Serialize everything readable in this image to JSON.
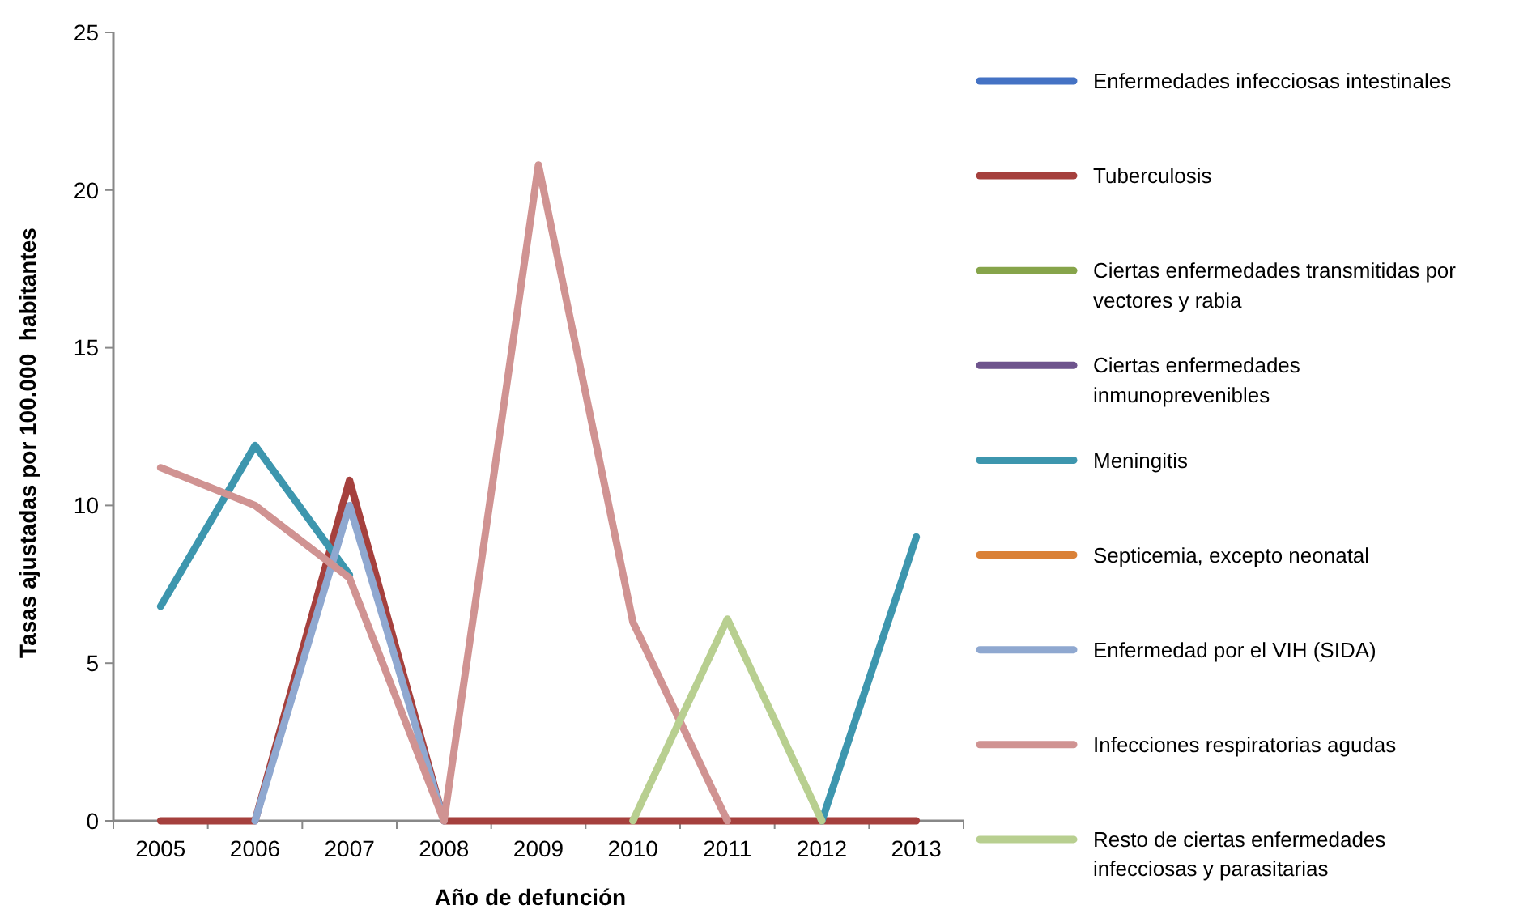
{
  "chart_data": {
    "type": "line",
    "xlabel": "Año de defunción",
    "ylabel": "Tasas ajustadas por 100.000  habitantes",
    "categories": [
      "2005",
      "2006",
      "2007",
      "2008",
      "2009",
      "2010",
      "2011",
      "2012",
      "2013"
    ],
    "ylim": [
      0,
      25
    ],
    "yticks": [
      0,
      5,
      10,
      15,
      20,
      25
    ],
    "grid": false,
    "legend": "right",
    "line_style": "solid",
    "series": [
      {
        "name": "Enfermedades infecciosas intestinales",
        "color": "#4472c4",
        "values": [
          null,
          null,
          null,
          null,
          null,
          null,
          null,
          null,
          null
        ]
      },
      {
        "name": "Tuberculosis",
        "color": "#a5403d",
        "values": [
          0,
          0,
          10.8,
          0,
          0,
          0,
          0,
          0,
          0
        ]
      },
      {
        "name": "Ciertas enfermedades transmitidas por vectores y rabia",
        "color": "#86a44a",
        "values": [
          null,
          null,
          null,
          null,
          null,
          null,
          null,
          null,
          null
        ]
      },
      {
        "name": "Ciertas enfermedades inmunoprevenibles",
        "color": "#6e548d",
        "values": [
          null,
          null,
          null,
          null,
          null,
          null,
          null,
          null,
          null
        ]
      },
      {
        "name": "Meningitis",
        "color": "#3d96ae",
        "values": [
          6.8,
          11.9,
          7.8,
          null,
          null,
          null,
          null,
          0,
          9
        ]
      },
      {
        "name": "Septicemia, excepto neonatal",
        "color": "#da8137",
        "values": [
          null,
          null,
          null,
          null,
          null,
          null,
          null,
          null,
          null
        ]
      },
      {
        "name": "Enfermedad por el VIH (SIDA)",
        "color": "#8fa8d0",
        "values": [
          null,
          0,
          10,
          0,
          null,
          null,
          null,
          null,
          null
        ]
      },
      {
        "name": "Infecciones respiratorias agudas",
        "color": "#d09392",
        "values": [
          11.2,
          10,
          7.7,
          0,
          20.8,
          6.3,
          0,
          null,
          null
        ]
      },
      {
        "name": "Resto de ciertas enfermedades infecciosas y parasitarias",
        "color": "#b8cf90",
        "values": [
          null,
          null,
          null,
          null,
          null,
          0,
          6.4,
          0,
          null
        ]
      }
    ]
  }
}
